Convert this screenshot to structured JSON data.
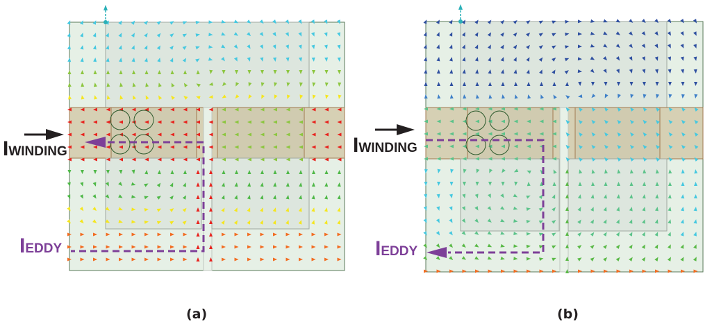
{
  "panels": [
    {
      "caption": "(a)",
      "winding_label": {
        "main": "I",
        "sub": "WINDING"
      },
      "eddy_label": {
        "main": "I",
        "sub": "EDDY"
      }
    },
    {
      "caption": "(b)",
      "winding_label": {
        "main": "I",
        "sub": "WINDING"
      },
      "eddy_label": {
        "main": "I",
        "sub": "EDDY"
      }
    }
  ],
  "colors": {
    "eddy_path": "#7d3f98",
    "winding_arrow": "#231f20",
    "background_region": "#e6f0e6",
    "winding_band": "#d6d0b4",
    "core_window": "#dde6de",
    "vector_palette_a": [
      "#e8231e",
      "#f26c21",
      "#f5e61e",
      "#8cc63f",
      "#4fb848",
      "#45c8e0"
    ],
    "vector_palette_b": [
      "#2e4fa0",
      "#3d7fc8",
      "#45c8e0",
      "#5cc38a",
      "#5ab947",
      "#f26c21"
    ]
  },
  "icons": [
    "arrow-right-icon",
    "arrow-left-icon",
    "conductor-circle-icon"
  ]
}
